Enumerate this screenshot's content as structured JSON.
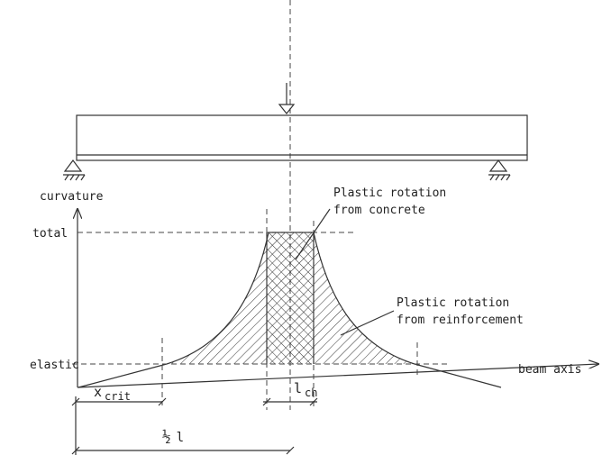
{
  "labels": {
    "y_axis": "curvature",
    "total": "total",
    "elastic": "elastic",
    "x_axis": "beam axis"
  },
  "annotations": [
    {
      "lines": [
        "Plastic rotation",
        "from concrete"
      ]
    },
    {
      "lines": [
        "Plastic rotation",
        "from reinforcement"
      ]
    }
  ],
  "dimensions": {
    "x_crit": {
      "symbol": "x",
      "subscript": "crit"
    },
    "l_ch": {
      "symbol": "l",
      "subscript": "ch"
    },
    "half_l": {
      "fraction": "½",
      "symbol": "l"
    }
  }
}
